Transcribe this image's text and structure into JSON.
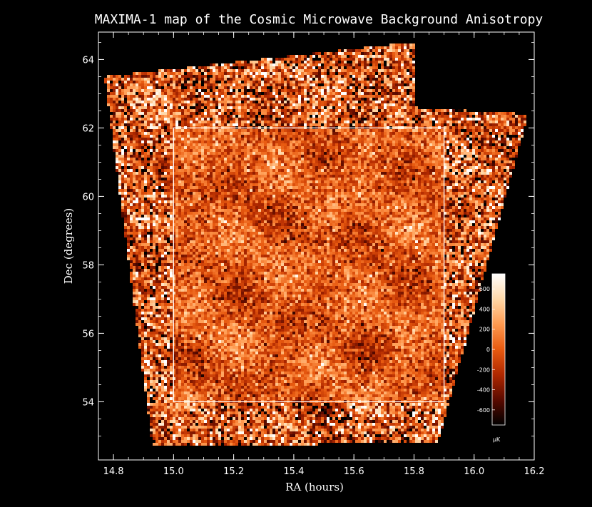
{
  "chart_data": {
    "type": "heatmap",
    "title": "MAXIMA-1 map of the Cosmic Microwave Background Anisotropy",
    "xlabel": "RA (hours)",
    "ylabel": "Dec (degrees)",
    "xlim": [
      14.75,
      16.2
    ],
    "ylim": [
      52.3,
      64.8
    ],
    "x_ticks": [
      "14.8",
      "15.0",
      "15.2",
      "15.4",
      "15.6",
      "15.8",
      "16.0",
      "16.2"
    ],
    "y_ticks": [
      "54",
      "56",
      "58",
      "60",
      "62",
      "64"
    ],
    "colorbar": {
      "unit": "μK",
      "range": [
        -750,
        750
      ],
      "ticks": [
        "600",
        "400",
        "200",
        "0",
        "-200",
        "-400",
        "-600"
      ],
      "colors": [
        "#000000",
        "#5a0a00",
        "#b02800",
        "#e85a10",
        "#ff9a50",
        "#ffd8a8",
        "#ffffff"
      ]
    },
    "highlight_box": {
      "ra": [
        15.0,
        15.9
      ],
      "dec": [
        54.0,
        62.0
      ]
    },
    "survey_region": [
      [
        14.77,
        63.5
      ],
      [
        15.8,
        64.5
      ],
      [
        15.8,
        62.6
      ],
      [
        16.18,
        62.4
      ],
      [
        15.88,
        52.8
      ],
      [
        14.93,
        52.7
      ]
    ],
    "grid": false
  }
}
